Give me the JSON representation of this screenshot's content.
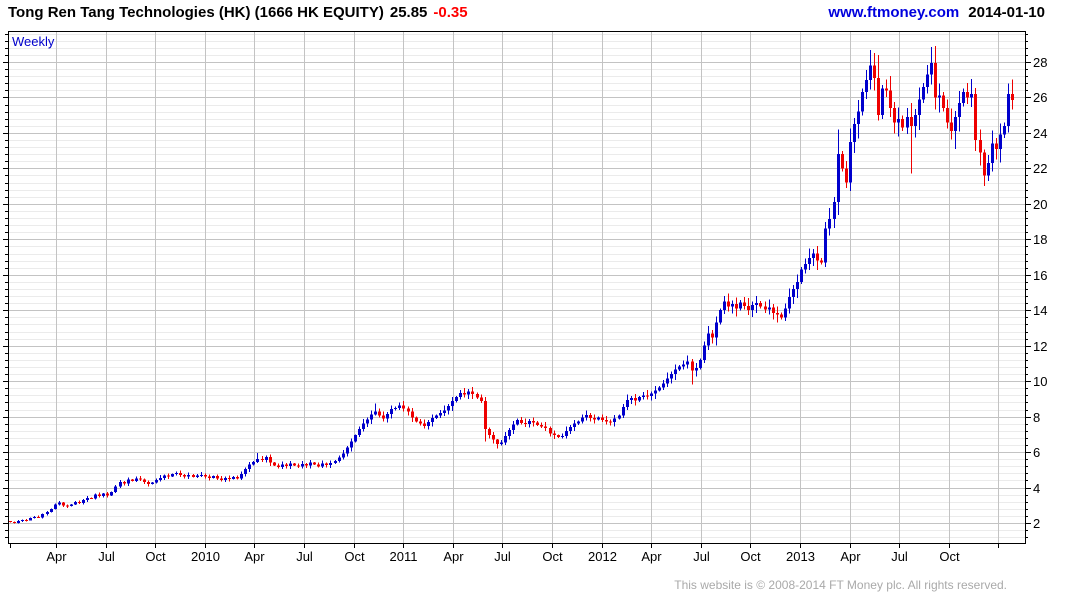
{
  "header": {
    "title": "Tong Ren Tang Technologies (HK) (1666 HK EQUITY)",
    "price": "25.85",
    "change": "-0.35",
    "site_link": "www.ftmoney.com",
    "date": "2014-01-10"
  },
  "footer": {
    "copyright": "This website is © 2008-2014 FT Money plc. All rights reserved."
  },
  "colors": {
    "up": "#0000cc",
    "down": "#ee0000",
    "grid_major": "#c3c3c3",
    "grid_minor": "#ebebeb",
    "axis": "#000000",
    "link_blue": "#0000dd",
    "change_red": "#ff0000",
    "footer_gray": "#a9a9a9"
  },
  "chart_data": {
    "type": "candlestick",
    "timeframe": "Weekly",
    "instrument": "Tong Ren Tang Technologies (HK) (1666 HK EQUITY)",
    "last": 25.85,
    "change": -0.35,
    "y_axis": {
      "side": "right",
      "major_step": 2,
      "minor_step": 0.4,
      "ylim": [
        0.9,
        29.75
      ]
    },
    "y_tick_labels": [
      2,
      4,
      6,
      8,
      10,
      12,
      14,
      16,
      18,
      20,
      22,
      24,
      26,
      28
    ],
    "x_tick_labels": [
      "Apr",
      "Jul",
      "Oct",
      "2010",
      "Apr",
      "Jul",
      "Oct",
      "2011",
      "Apr",
      "Jul",
      "Oct",
      "2012",
      "Apr",
      "Jul",
      "Oct",
      "2013",
      "Apr",
      "Jul",
      "Oct"
    ],
    "first_open": 2.1,
    "weekly_closes": [
      2.05,
      2.0,
      2.1,
      2.18,
      2.15,
      2.28,
      2.35,
      2.32,
      2.5,
      2.62,
      2.8,
      3.05,
      3.15,
      2.98,
      2.95,
      3.05,
      3.18,
      3.12,
      3.3,
      3.42,
      3.38,
      3.6,
      3.52,
      3.65,
      3.55,
      3.75,
      4.05,
      4.3,
      4.22,
      4.45,
      4.38,
      4.52,
      4.45,
      4.3,
      4.2,
      4.28,
      4.42,
      4.55,
      4.68,
      4.62,
      4.75,
      4.82,
      4.7,
      4.62,
      4.72,
      4.6,
      4.68,
      4.72,
      4.62,
      4.55,
      4.65,
      4.5,
      4.42,
      4.55,
      4.48,
      4.6,
      4.52,
      4.75,
      5.05,
      5.3,
      5.45,
      5.6,
      5.55,
      5.72,
      5.4,
      5.25,
      5.15,
      5.3,
      5.22,
      5.35,
      5.25,
      5.18,
      5.32,
      5.25,
      5.4,
      5.3,
      5.2,
      5.35,
      5.28,
      5.38,
      5.5,
      5.7,
      5.92,
      6.25,
      6.6,
      6.95,
      7.3,
      7.62,
      7.85,
      8.12,
      8.3,
      8.05,
      7.88,
      8.15,
      8.42,
      8.5,
      8.62,
      8.45,
      8.28,
      7.95,
      7.72,
      7.6,
      7.48,
      7.7,
      7.92,
      8.05,
      8.2,
      8.35,
      8.6,
      8.88,
      9.1,
      9.32,
      9.25,
      9.42,
      9.28,
      9.08,
      8.88,
      7.3,
      6.95,
      6.7,
      6.45,
      6.55,
      6.9,
      7.25,
      7.55,
      7.82,
      7.65,
      7.58,
      7.75,
      7.68,
      7.52,
      7.45,
      7.35,
      7.05,
      6.95,
      6.85,
      6.92,
      7.2,
      7.42,
      7.6,
      7.72,
      7.95,
      8.1,
      7.92,
      7.85,
      7.95,
      7.8,
      7.72,
      7.7,
      7.9,
      8.05,
      8.55,
      8.95,
      9.05,
      8.9,
      9.1,
      9.2,
      9.15,
      9.3,
      9.48,
      9.65,
      9.88,
      10.15,
      10.4,
      10.65,
      10.82,
      10.95,
      11.1,
      10.6,
      10.75,
      11.2,
      12.0,
      12.7,
      12.45,
      13.3,
      14.0,
      14.5,
      14.2,
      14.35,
      14.1,
      14.45,
      14.25,
      14.0,
      14.3,
      14.42,
      14.2,
      14.05,
      14.15,
      13.85,
      13.75,
      13.58,
      14.1,
      14.75,
      15.2,
      15.6,
      16.3,
      16.6,
      16.95,
      17.2,
      16.8,
      16.7,
      18.6,
      19.15,
      20.1,
      22.8,
      22.0,
      21.2,
      23.5,
      24.5,
      25.2,
      26.3,
      27.0,
      27.8,
      27.1,
      25.0,
      26.5,
      26.4,
      25.4,
      24.6,
      24.8,
      24.3,
      24.9,
      24.4,
      25.0,
      25.9,
      26.6,
      27.3,
      27.95,
      26.0,
      26.1,
      25.4,
      24.6,
      24.1,
      24.9,
      25.7,
      26.3,
      26.0,
      26.2,
      23.6,
      22.9,
      21.6,
      22.3,
      23.4,
      23.1,
      23.9,
      24.4,
      26.2,
      25.85
    ],
    "wick_overrides": {
      "61": {
        "high": 5.95
      },
      "90": {
        "high": 8.75
      },
      "117": {
        "low": 6.6
      },
      "120": {
        "low": 6.2
      },
      "168": {
        "low": 9.8
      },
      "204": {
        "high": 24.2
      },
      "213": {
        "high": 28.5
      },
      "214": {
        "high": 28.4,
        "low": 24.7
      },
      "222": {
        "low": 21.7
      },
      "228": {
        "high": 28.9
      },
      "233": {
        "low": 23.1
      },
      "240": {
        "low": 21.0
      },
      "246": {
        "high": 26.8
      }
    }
  }
}
